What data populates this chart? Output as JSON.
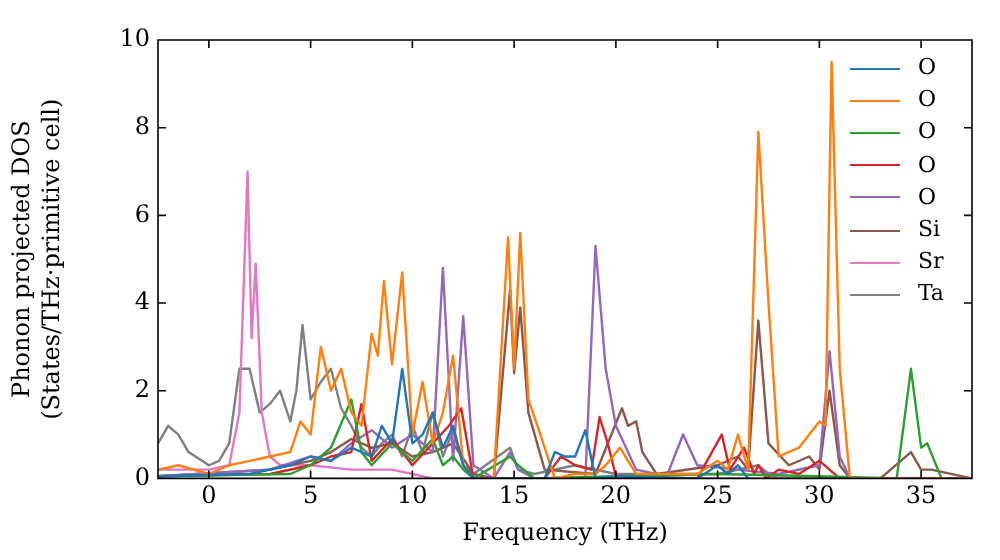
{
  "chart_data": {
    "type": "line",
    "xlabel": "Frequency (THz)",
    "ylabel": "Phonon projected DOS (States/THz·primitive cell)",
    "xlim": [
      -2.5,
      37.5
    ],
    "ylim": [
      0,
      10
    ],
    "xticks": [
      0,
      5,
      10,
      15,
      20,
      25,
      30,
      35
    ],
    "yticks": [
      0,
      2,
      4,
      6,
      8,
      10
    ],
    "grid": false,
    "legend": "top right",
    "marker": "none",
    "line_style": "solid",
    "series": [
      {
        "name": "O",
        "color": "#1f77b4",
        "x": [
          -2.5,
          2,
          4,
          5,
          6,
          7,
          8,
          8.5,
          9,
          9.5,
          10,
          10.5,
          11,
          11.5,
          12,
          12.5,
          13,
          16.5,
          17,
          17.5,
          18,
          18.5,
          19,
          20,
          24,
          25,
          25.5,
          26,
          26.5
        ],
        "values": [
          0.05,
          0.1,
          0.3,
          0.5,
          0.4,
          0.7,
          0.5,
          1.2,
          0.8,
          2.5,
          0.8,
          1.0,
          1.5,
          0.7,
          1.2,
          0.3,
          0,
          0,
          0.6,
          0.5,
          0.5,
          1.1,
          0,
          0.05,
          0,
          0.3,
          0.1,
          0.3,
          0
        ]
      },
      {
        "name": "O",
        "color": "#ff7f0e",
        "x": [
          -2.5,
          -1.5,
          0,
          1,
          2,
          3,
          4,
          4.5,
          5,
          5.5,
          6,
          6.5,
          7,
          7.5,
          8,
          8.3,
          8.6,
          9,
          9.5,
          10,
          10.5,
          11,
          11.5,
          12,
          12.5,
          13,
          14,
          14.7,
          15,
          15.3,
          15.7,
          16,
          17,
          18,
          19,
          19.5,
          20.2,
          21,
          24,
          25,
          25.5,
          26,
          26.5,
          27,
          27.5,
          28,
          29,
          30,
          30.3,
          30.6,
          31,
          31.5,
          37.5
        ],
        "values": [
          0.2,
          0.3,
          0.1,
          0.3,
          0.4,
          0.5,
          0.6,
          1.3,
          1.0,
          3.0,
          2.0,
          2.5,
          1.5,
          1.2,
          3.3,
          2.8,
          4.5,
          2.6,
          4.7,
          1.0,
          2.2,
          0.8,
          1.5,
          2.8,
          0.3,
          0,
          0,
          5.5,
          2.5,
          5.6,
          1.8,
          1.4,
          0,
          0.1,
          0.1,
          0.3,
          0.7,
          0.1,
          0.1,
          0.4,
          0.2,
          1.0,
          0.2,
          7.9,
          4.0,
          0.5,
          0.7,
          1.3,
          1.2,
          9.5,
          2.5,
          0,
          0
        ]
      },
      {
        "name": "O",
        "color": "#2ca02c",
        "x": [
          -2.5,
          4,
          5,
          6,
          7,
          7.5,
          8,
          9,
          10,
          11,
          11.5,
          12,
          12.5,
          13,
          14.8,
          15.2,
          16,
          20,
          25,
          30,
          33.8,
          34.5,
          35,
          35.3,
          36,
          37.5
        ],
        "values": [
          0.05,
          0.1,
          0.3,
          0.7,
          1.8,
          0.6,
          0.3,
          0.8,
          0.4,
          0.9,
          0.3,
          0.5,
          0.2,
          0,
          0.5,
          0.3,
          0,
          0.05,
          0.1,
          0.05,
          0,
          2.5,
          0.7,
          0.8,
          0,
          0
        ]
      },
      {
        "name": "O",
        "color": "#d62728",
        "x": [
          -2.5,
          3,
          5,
          6,
          7,
          7.5,
          8,
          9,
          10,
          11,
          11.8,
          12.4,
          13,
          16.5,
          17.3,
          18,
          18.8,
          19.2,
          19.6,
          20,
          24,
          25.2,
          25.6,
          26.3,
          26.8,
          27,
          27.4,
          28,
          29,
          30,
          31,
          37.5
        ],
        "values": [
          0.05,
          0.1,
          0.3,
          0.5,
          0.6,
          1.7,
          0.4,
          0.9,
          0.3,
          0.8,
          1.2,
          1.6,
          0,
          0,
          0.5,
          0.3,
          0.2,
          1.4,
          0.8,
          0.05,
          0,
          1.0,
          0.2,
          0.7,
          0.1,
          0.3,
          0,
          0.2,
          0.1,
          0.4,
          0,
          0
        ]
      },
      {
        "name": "O",
        "color": "#9467bd",
        "x": [
          -2.5,
          3,
          5,
          6,
          7,
          8,
          9,
          10,
          11,
          11.5,
          12,
          12.5,
          13,
          14,
          14.8,
          15.2,
          16,
          18.5,
          19,
          19.5,
          20,
          21,
          22.5,
          23.3,
          24,
          26,
          28,
          30,
          30.5,
          31,
          31.5,
          37.5
        ],
        "values": [
          0.05,
          0.2,
          0.5,
          0.4,
          0.8,
          1.1,
          0.7,
          1.0,
          0.6,
          4.8,
          0.4,
          3.7,
          0.3,
          0,
          0.6,
          0.2,
          0,
          0,
          5.3,
          2.5,
          1.2,
          0.2,
          0.05,
          1.0,
          0.3,
          0.2,
          0.1,
          0.3,
          2.9,
          0.5,
          0,
          0
        ]
      },
      {
        "name": "Si",
        "color": "#8c564b",
        "x": [
          -2.5,
          3,
          5,
          6,
          7,
          8,
          9,
          10,
          11,
          12,
          13,
          14,
          14.8,
          15,
          15.3,
          15.7,
          16.5,
          19,
          20.3,
          20.6,
          21,
          21.3,
          22,
          25,
          26,
          26.5,
          27,
          27.5,
          28.5,
          29.5,
          30,
          30.5,
          31,
          31.5,
          33,
          34.5,
          35,
          35.5,
          37.5
        ],
        "values": [
          0.05,
          0.2,
          0.4,
          0.6,
          0.9,
          0.7,
          0.8,
          0.5,
          0.6,
          0.8,
          0.1,
          0,
          4.3,
          2.4,
          3.9,
          1.5,
          0.2,
          0.1,
          1.6,
          1.2,
          1.3,
          0.6,
          0.1,
          0.3,
          0.5,
          0.2,
          3.6,
          0.8,
          0.3,
          0.5,
          0.2,
          2.0,
          0.3,
          0,
          0,
          0.6,
          0.2,
          0.2,
          0
        ]
      },
      {
        "name": "Sr",
        "color": "#e377c2",
        "x": [
          -2.5,
          0,
          1,
          1.5,
          1.9,
          2.1,
          2.3,
          2.6,
          3,
          3.5,
          5,
          7,
          9,
          10,
          11,
          37.5
        ],
        "values": [
          0.2,
          0.2,
          0.3,
          1.5,
          7.0,
          3.2,
          4.9,
          1.5,
          0.5,
          0.3,
          0.3,
          0.2,
          0.2,
          0.1,
          0,
          0
        ]
      },
      {
        "name": "Ta",
        "color": "#7f7f7f",
        "x": [
          -2.5,
          -2,
          -1.5,
          -1,
          0,
          0.5,
          1,
          1.5,
          2,
          2.5,
          3,
          3.5,
          4,
          4.3,
          4.6,
          5,
          5.5,
          6,
          6.5,
          7,
          7.5,
          8,
          8.5,
          9,
          9.5,
          10,
          10.5,
          11,
          11.5,
          12,
          12.5,
          13,
          14.8,
          15.2,
          16,
          18,
          20,
          25,
          27,
          27.5,
          28,
          37.5
        ],
        "values": [
          0.8,
          1.2,
          1.0,
          0.6,
          0.3,
          0.4,
          0.8,
          2.5,
          2.5,
          1.5,
          1.7,
          2.0,
          1.3,
          2.0,
          3.5,
          1.8,
          2.2,
          2.5,
          1.6,
          1.2,
          0.7,
          0.5,
          0.8,
          1.0,
          0.5,
          1.2,
          0.6,
          1.5,
          0.5,
          1.1,
          0.3,
          0.1,
          0.7,
          0.2,
          0.1,
          0.3,
          0.1,
          0.1,
          0.3,
          0.1,
          0,
          0
        ]
      }
    ]
  }
}
